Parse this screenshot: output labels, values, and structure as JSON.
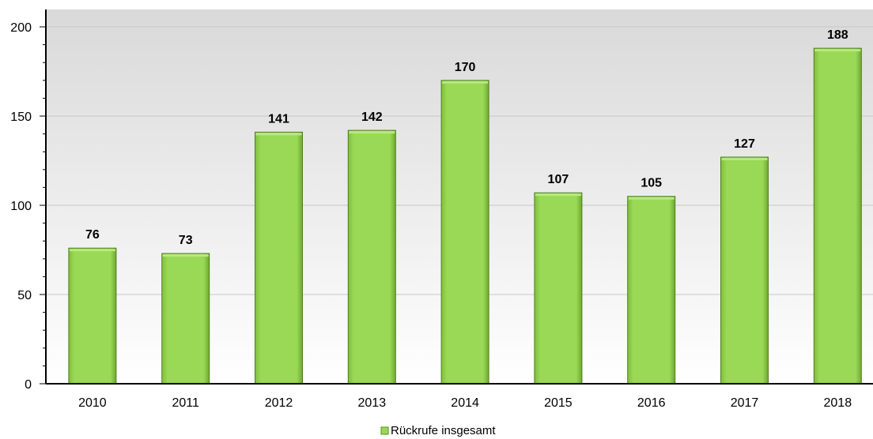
{
  "chart_data": {
    "type": "bar",
    "categories": [
      "2010",
      "2011",
      "2012",
      "2013",
      "2014",
      "2015",
      "2016",
      "2017",
      "2018"
    ],
    "series": [
      {
        "name": "Rückrufe insgesamt",
        "values": [
          76,
          73,
          141,
          142,
          170,
          107,
          105,
          127,
          188
        ],
        "color": "#99d955"
      }
    ],
    "title": "",
    "xlabel": "",
    "ylabel": "",
    "ylim": [
      0,
      200
    ],
    "yticks": [
      0,
      50,
      100,
      150,
      200
    ],
    "grid": true,
    "legend_position": "bottom-center",
    "data_labels": true
  }
}
